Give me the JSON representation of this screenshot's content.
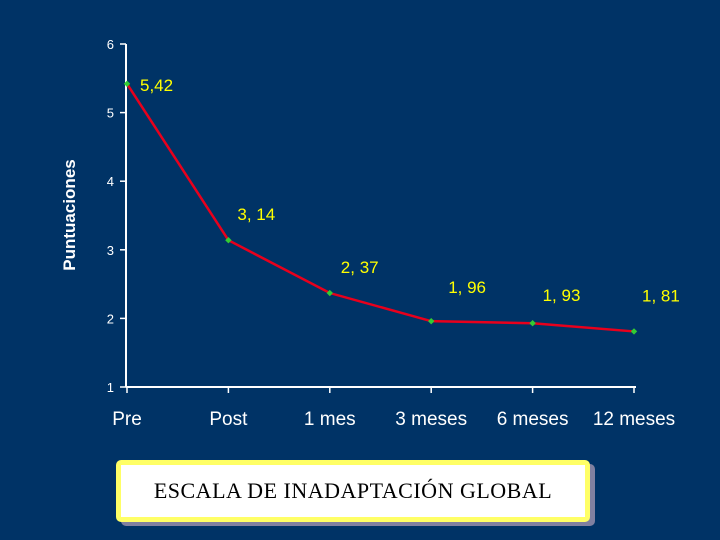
{
  "chart_data": {
    "type": "line",
    "categories": [
      "Pre",
      "Post",
      "1 mes",
      "3 meses",
      "6 meses",
      "12 meses"
    ],
    "series": [
      {
        "values": [
          5.42,
          3.14,
          2.37,
          1.96,
          1.93,
          1.81
        ]
      }
    ],
    "data_labels": [
      "5,42",
      "3, 14",
      "2, 37",
      "1, 96",
      "1, 93",
      "1, 81"
    ],
    "ylabel": "Puntuaciones",
    "ylim": [
      1,
      6
    ],
    "yticks": [
      "1",
      "2",
      "3",
      "4",
      "5",
      "6"
    ],
    "grid": false,
    "line_color": "#e8001c",
    "marker_color": "#33cc33",
    "label_color": "#ffff00"
  },
  "caption": "ESCALA DE INADAPTACIÓN GLOBAL"
}
